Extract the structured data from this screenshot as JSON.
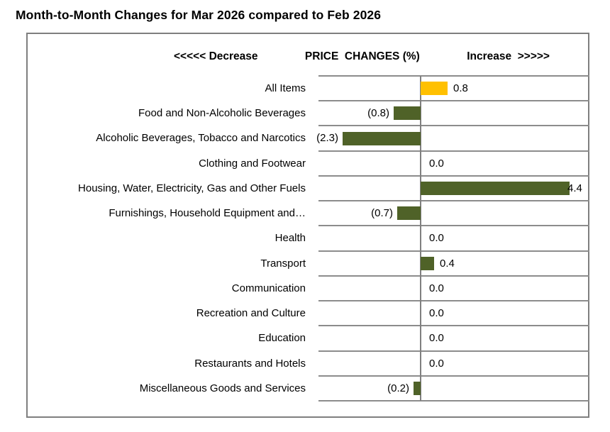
{
  "figure": {
    "title": "Month-to-Month Changes for Mar 2026 compared to Feb 2026"
  },
  "header": {
    "decrease": "<<<<< Decrease",
    "center": "PRICE  CHANGES (%)",
    "increase": "Increase  >>>>>"
  },
  "chart_data": {
    "type": "bar",
    "orientation": "horizontal",
    "title": "PRICE CHANGES (%)",
    "categories": [
      "All Items",
      "Food and Non-Alcoholic Beverages",
      "Alcoholic Beverages, Tobacco and Narcotics",
      "Clothing and Footwear",
      "Housing, Water, Electricity, Gas and Other Fuels",
      "Furnishings, Household Equipment and…",
      "Health",
      "Transport",
      "Communication",
      "Recreation and Culture",
      "Education",
      "Restaurants and Hotels",
      "Miscellaneous Goods and Services"
    ],
    "values": [
      0.8,
      -0.8,
      -2.3,
      0.0,
      4.4,
      -0.7,
      0.0,
      0.4,
      0.0,
      0.0,
      0.0,
      0.0,
      -0.2
    ],
    "value_labels": [
      "0.8",
      "(0.8)",
      "(2.3)",
      "0.0",
      "4.4",
      "(0.7)",
      "0.0",
      "0.4",
      "0.0",
      "0.0",
      "0.0",
      "0.0",
      "(0.2)"
    ],
    "bar_colors": [
      "#FFC000",
      "#4F6228",
      "#4F6228",
      "#4F6228",
      "#4F6228",
      "#4F6228",
      "#4F6228",
      "#4F6228",
      "#4F6228",
      "#4F6228",
      "#4F6228",
      "#4F6228",
      "#4F6228"
    ],
    "xlim": [
      -3,
      5
    ],
    "negative_label_format": "parentheses",
    "gridlines": "horizontal-row-separators",
    "zero_axis": true,
    "legend": "none"
  },
  "colors": {
    "accent_bar": "#FFC000",
    "default_bar": "#4F6228",
    "gridline": "#8C8C8C",
    "chart_border": "#7F7F7F",
    "text": "#000000",
    "background": "#FFFFFF"
  }
}
